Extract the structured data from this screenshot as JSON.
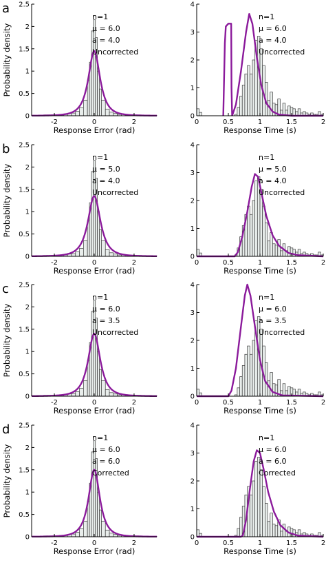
{
  "chart_data": [
    {
      "panel": "a",
      "type": "histogram+line",
      "xlabel": "Response Error (rad)",
      "ylabel": "Probability density",
      "xlim": [
        -3.14,
        3.14
      ],
      "ylim": [
        0,
        2.5
      ],
      "xticks": [
        -2,
        0,
        2
      ],
      "yticks": [
        0,
        0.5,
        1,
        1.5,
        2,
        2.5
      ],
      "annotation": [
        "n=1",
        "μ = 6.0",
        "a = 4.0",
        "Uncorrected"
      ],
      "fit": {
        "type": "error",
        "peak": 1.45,
        "width": 0.28
      }
    },
    {
      "panel": "a",
      "type": "histogram+line",
      "xlabel": "Response Time (s)",
      "ylabel": "",
      "xlim": [
        0,
        2
      ],
      "ylim": [
        0,
        4
      ],
      "xticks": [
        0,
        0.5,
        1,
        1.5,
        2
      ],
      "yticks": [
        0,
        1,
        2,
        3,
        4
      ],
      "annotation": [
        "n=1",
        "μ = 6.0",
        "a = 4.0",
        "Uncorrected"
      ],
      "fit": {
        "type": "rt",
        "segments": [
          [
            [
              0.42,
              0
            ],
            [
              0.445,
              2.6
            ],
            [
              0.46,
              3.2
            ],
            [
              0.5,
              3.3
            ],
            [
              0.545,
              3.3
            ],
            [
              0.55,
              1.0
            ],
            [
              0.56,
              0
            ]
          ],
          [
            [
              0.56,
              0
            ],
            [
              0.62,
              0.4
            ],
            [
              0.7,
              1.6
            ],
            [
              0.78,
              3.0
            ],
            [
              0.83,
              3.65
            ],
            [
              0.88,
              3.3
            ],
            [
              0.95,
              2.1
            ],
            [
              1.02,
              1.1
            ],
            [
              1.1,
              0.45
            ],
            [
              1.2,
              0.15
            ],
            [
              1.3,
              0.04
            ],
            [
              1.5,
              0
            ],
            [
              2,
              0
            ]
          ]
        ]
      }
    },
    {
      "panel": "b",
      "type": "histogram+line",
      "xlabel": "Response Error (rad)",
      "ylabel": "Probability density",
      "xlim": [
        -3.14,
        3.14
      ],
      "ylim": [
        0,
        2.5
      ],
      "xticks": [
        -2,
        0,
        2
      ],
      "yticks": [
        0,
        0.5,
        1,
        1.5,
        2,
        2.5
      ],
      "annotation": [
        "n=1",
        "μ = 5.0",
        "a = 4.0",
        "Uncorrected"
      ],
      "fit": {
        "type": "error",
        "peak": 1.35,
        "width": 0.3
      }
    },
    {
      "panel": "b",
      "type": "histogram+line",
      "xlabel": "Response Time (s)",
      "ylabel": "",
      "xlim": [
        0,
        2
      ],
      "ylim": [
        0,
        4
      ],
      "xticks": [
        0,
        0.5,
        1,
        1.5,
        2
      ],
      "yticks": [
        0,
        1,
        2,
        3,
        4
      ],
      "annotation": [
        "n=1",
        "μ = 5.0",
        "a = 4.0",
        "Uncorrected"
      ],
      "fit": {
        "type": "rt",
        "segments": [
          [
            [
              0,
              0
            ],
            [
              0.6,
              0
            ],
            [
              0.65,
              0.15
            ],
            [
              0.72,
              0.7
            ],
            [
              0.8,
              1.6
            ],
            [
              0.87,
              2.5
            ],
            [
              0.92,
              2.95
            ],
            [
              0.97,
              2.85
            ],
            [
              1.03,
              2.2
            ],
            [
              1.1,
              1.45
            ],
            [
              1.2,
              0.75
            ],
            [
              1.3,
              0.38
            ],
            [
              1.45,
              0.12
            ],
            [
              1.6,
              0.04
            ],
            [
              2,
              0
            ]
          ]
        ]
      }
    },
    {
      "panel": "c",
      "type": "histogram+line",
      "xlabel": "Response Error (rad)",
      "ylabel": "Probability density",
      "xlim": [
        -3.14,
        3.14
      ],
      "ylim": [
        0,
        2.5
      ],
      "xticks": [
        -2,
        0,
        2
      ],
      "yticks": [
        0,
        0.5,
        1,
        1.5,
        2,
        2.5
      ],
      "annotation": [
        "n=1",
        "μ = 6.0",
        "a = 3.5",
        "Uncorrected"
      ],
      "fit": {
        "type": "error",
        "peak": 1.4,
        "width": 0.29
      }
    },
    {
      "panel": "c",
      "type": "histogram+line",
      "xlabel": "Response Time (s)",
      "ylabel": "",
      "xlim": [
        0,
        2
      ],
      "ylim": [
        0,
        4
      ],
      "xticks": [
        0,
        0.5,
        1,
        1.5,
        2
      ],
      "yticks": [
        0,
        1,
        2,
        3,
        4
      ],
      "annotation": [
        "n=1",
        "μ = 6.0",
        "a = 3.5",
        "Uncorrected"
      ],
      "fit": {
        "type": "rt",
        "segments": [
          [
            [
              0,
              0
            ],
            [
              0.5,
              0
            ],
            [
              0.55,
              0.2
            ],
            [
              0.62,
              1.0
            ],
            [
              0.7,
              2.5
            ],
            [
              0.76,
              3.6
            ],
            [
              0.8,
              4.0
            ],
            [
              0.85,
              3.6
            ],
            [
              0.92,
              2.5
            ],
            [
              1.0,
              1.3
            ],
            [
              1.08,
              0.55
            ],
            [
              1.2,
              0.15
            ],
            [
              1.35,
              0.03
            ],
            [
              2,
              0
            ]
          ]
        ]
      }
    },
    {
      "panel": "d",
      "type": "histogram+line",
      "xlabel": "Response Error (rad)",
      "ylabel": "Probability density",
      "xlim": [
        -3.14,
        3.14
      ],
      "ylim": [
        0,
        2.5
      ],
      "xticks": [
        -2,
        0,
        2
      ],
      "yticks": [
        0,
        0.5,
        1,
        1.5,
        2,
        2.5
      ],
      "annotation": [
        "n=1",
        "μ = 6.0",
        "a = 6.0",
        "Corrected"
      ],
      "fit": {
        "type": "error",
        "peak": 1.5,
        "width": 0.27
      }
    },
    {
      "panel": "d",
      "type": "histogram+line",
      "xlabel": "Response Time (s)",
      "ylabel": "",
      "xlim": [
        0,
        2
      ],
      "ylim": [
        0,
        4
      ],
      "xticks": [
        0,
        0.5,
        1,
        1.5,
        2
      ],
      "yticks": [
        0,
        1,
        2,
        3,
        4
      ],
      "annotation": [
        "n=1",
        "μ = 6.0",
        "a = 6.0",
        "Corrected"
      ],
      "fit": {
        "type": "rt",
        "segments": [
          [
            [
              0,
              0
            ],
            [
              0.7,
              0
            ],
            [
              0.73,
              0.05
            ],
            [
              0.78,
              0.6
            ],
            [
              0.84,
              1.7
            ],
            [
              0.9,
              2.7
            ],
            [
              0.95,
              3.1
            ],
            [
              1.0,
              3.0
            ],
            [
              1.06,
              2.4
            ],
            [
              1.13,
              1.6
            ],
            [
              1.22,
              0.9
            ],
            [
              1.32,
              0.42
            ],
            [
              1.45,
              0.15
            ],
            [
              1.6,
              0.04
            ],
            [
              2,
              0
            ]
          ]
        ]
      }
    }
  ],
  "histograms": {
    "error": {
      "bin_edges": [
        -3.14,
        -2.94,
        -2.74,
        -2.54,
        -2.34,
        -2.14,
        -1.94,
        -1.74,
        -1.54,
        -1.34,
        -1.14,
        -0.94,
        -0.74,
        -0.54,
        -0.34,
        -0.24,
        -0.14,
        -0.04,
        0.06,
        0.16,
        0.26,
        0.36,
        0.56,
        0.76,
        0.96,
        1.16,
        1.36,
        1.56,
        1.76,
        1.96,
        2.16,
        2.36,
        2.56,
        2.76,
        2.96,
        3.14
      ],
      "heights": [
        0.01,
        0.01,
        0.01,
        0.02,
        0.02,
        0.02,
        0.02,
        0.03,
        0.03,
        0.05,
        0.06,
        0.1,
        0.18,
        0.35,
        0.8,
        1.2,
        1.9,
        2.15,
        1.75,
        1.0,
        0.6,
        0.35,
        0.15,
        0.08,
        0.05,
        0.03,
        0.03,
        0.02,
        0.02,
        0.02,
        0.02,
        0.01,
        0.01,
        0.01,
        0.01
      ]
    },
    "rt": {
      "bin_edges": [
        0,
        0.04,
        0.08,
        0.12,
        0.16,
        0.2,
        0.24,
        0.28,
        0.32,
        0.36,
        0.4,
        0.44,
        0.48,
        0.52,
        0.56,
        0.6,
        0.64,
        0.68,
        0.72,
        0.76,
        0.8,
        0.84,
        0.88,
        0.92,
        0.96,
        1.0,
        1.04,
        1.08,
        1.12,
        1.16,
        1.2,
        1.24,
        1.28,
        1.32,
        1.36,
        1.4,
        1.44,
        1.48,
        1.52,
        1.56,
        1.6,
        1.64,
        1.68,
        1.72,
        1.76,
        1.8,
        1.84,
        1.88,
        1.92,
        1.96,
        2.0
      ],
      "heights": [
        0.25,
        0.12,
        0,
        0,
        0,
        0,
        0,
        0,
        0,
        0,
        0,
        0,
        0,
        0,
        0,
        0.05,
        0.3,
        0.7,
        1.1,
        1.5,
        1.8,
        1.5,
        2.0,
        2.7,
        2.85,
        2.4,
        1.8,
        1.2,
        0.55,
        0.85,
        0.45,
        0.4,
        0.6,
        0.2,
        0.45,
        0.2,
        0.35,
        0.3,
        0.25,
        0.15,
        0.25,
        0.1,
        0.15,
        0.1,
        0.05,
        0.1,
        0.05,
        0.05,
        0.15,
        0.05
      ]
    }
  },
  "panel_letters": [
    "a",
    "b",
    "c",
    "d"
  ],
  "colors": {
    "fit": "#8b1a9b",
    "bar_fill": "#e8edeb",
    "bar_edge": "#3a3a3a"
  }
}
